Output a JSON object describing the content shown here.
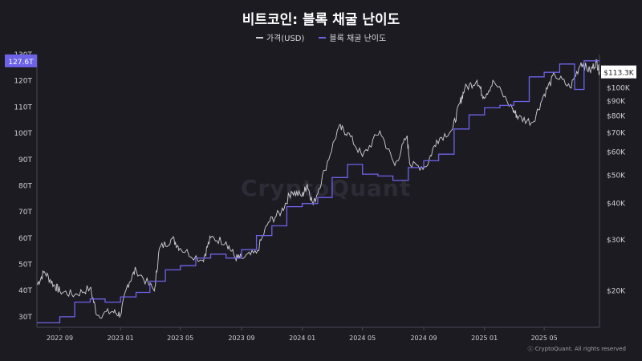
{
  "title": "비트코인: 블록 채굴 난이도",
  "legend": [
    {
      "label": "가격(USD)",
      "color": "#d0d0d6"
    },
    {
      "label": "블록 채굴 난이도",
      "color": "#6c63e8"
    }
  ],
  "watermark": "CryptoQuant",
  "credit": "ⓒ CryptoQuant. All rights reserved",
  "colors": {
    "background": "#1c1b22",
    "price": "#d0d0d6",
    "difficulty": "#6c63e8",
    "axis_text": "#cfcfd4"
  },
  "chart_data": {
    "type": "line",
    "title": "비트코인: 블록 채굴 난이도",
    "x_ticks": [
      "2022 09",
      "2023 01",
      "2023 05",
      "2023 09",
      "2024 01",
      "2024 05",
      "2024 09",
      "2025 01",
      "2025 05"
    ],
    "x_tick_dates": [
      "2022-09-01",
      "2023-01-01",
      "2023-05-01",
      "2023-09-01",
      "2024-01-01",
      "2024-05-01",
      "2024-09-01",
      "2025-01-01",
      "2025-05-01"
    ],
    "x_range": [
      "2022-07-17",
      "2025-08-20"
    ],
    "y_left": {
      "label": "블록 채굴 난이도",
      "unit": "T",
      "ticks": [
        30,
        40,
        50,
        60,
        70,
        80,
        90,
        100,
        110,
        120,
        130
      ],
      "tick_labels": [
        "30T",
        "40T",
        "50T",
        "60T",
        "70T",
        "80T",
        "90T",
        "100T",
        "110T",
        "120T",
        "130T"
      ],
      "range": [
        26,
        130
      ],
      "current_label": "127.6T"
    },
    "y_right": {
      "label": "가격(USD)",
      "scale": "log",
      "ticks": [
        20000,
        30000,
        40000,
        50000,
        60000,
        70000,
        80000,
        90000,
        100000
      ],
      "tick_labels": [
        "$20K",
        "$30K",
        "$40K",
        "$50K",
        "$60K",
        "$70K",
        "$80K",
        "$90K",
        "$100K"
      ],
      "range": [
        15000,
        130000
      ],
      "current_label": "$113.3K"
    },
    "grid": false,
    "legend_position": "top-center",
    "series": [
      {
        "name": "블록 채굴 난이도",
        "axis": "left",
        "step": true,
        "points": [
          [
            "2022-07-17",
            27.7
          ],
          [
            "2022-09-01",
            30.0
          ],
          [
            "2022-10-01",
            35.6
          ],
          [
            "2022-11-01",
            36.8
          ],
          [
            "2022-12-01",
            35.6
          ],
          [
            "2023-01-01",
            37.6
          ],
          [
            "2023-02-01",
            39.3
          ],
          [
            "2023-03-01",
            43.6
          ],
          [
            "2023-04-01",
            47.9
          ],
          [
            "2023-05-01",
            49.5
          ],
          [
            "2023-06-01",
            52.4
          ],
          [
            "2023-07-01",
            53.9
          ],
          [
            "2023-08-01",
            52.4
          ],
          [
            "2023-09-01",
            55.6
          ],
          [
            "2023-10-01",
            61.0
          ],
          [
            "2023-11-01",
            64.7
          ],
          [
            "2023-12-01",
            72.0
          ],
          [
            "2024-01-01",
            73.2
          ],
          [
            "2024-02-01",
            75.5
          ],
          [
            "2024-03-01",
            83.1
          ],
          [
            "2024-04-01",
            88.1
          ],
          [
            "2024-05-01",
            84.4
          ],
          [
            "2024-06-01",
            83.7
          ],
          [
            "2024-07-01",
            82.0
          ],
          [
            "2024-08-01",
            86.9
          ],
          [
            "2024-09-01",
            89.5
          ],
          [
            "2024-10-01",
            92.0
          ],
          [
            "2024-11-01",
            101.6
          ],
          [
            "2024-12-01",
            107.0
          ],
          [
            "2025-01-01",
            109.7
          ],
          [
            "2025-02-01",
            110.6
          ],
          [
            "2025-03-01",
            112.1
          ],
          [
            "2025-04-01",
            121.5
          ],
          [
            "2025-05-01",
            123.2
          ],
          [
            "2025-06-01",
            126.4
          ],
          [
            "2025-07-01",
            116.7
          ],
          [
            "2025-07-20",
            127.6
          ],
          [
            "2025-08-20",
            127.6
          ]
        ]
      },
      {
        "name": "가격(USD)",
        "axis": "right",
        "step": false,
        "points": [
          [
            "2022-07-17",
            21000
          ],
          [
            "2022-08-01",
            23300
          ],
          [
            "2022-08-20",
            21000
          ],
          [
            "2022-09-01",
            20000
          ],
          [
            "2022-10-01",
            19400
          ],
          [
            "2022-11-01",
            20500
          ],
          [
            "2022-11-15",
            16500
          ],
          [
            "2022-12-15",
            17000
          ],
          [
            "2023-01-01",
            16600
          ],
          [
            "2023-01-15",
            21000
          ],
          [
            "2023-02-01",
            23700
          ],
          [
            "2023-03-10",
            20000
          ],
          [
            "2023-03-20",
            28000
          ],
          [
            "2023-04-15",
            30300
          ],
          [
            "2023-05-01",
            28000
          ],
          [
            "2023-06-15",
            25500
          ],
          [
            "2023-07-01",
            30500
          ],
          [
            "2023-08-01",
            29500
          ],
          [
            "2023-08-20",
            26000
          ],
          [
            "2023-09-01",
            25900
          ],
          [
            "2023-10-01",
            27000
          ],
          [
            "2023-10-25",
            34500
          ],
          [
            "2023-11-20",
            37500
          ],
          [
            "2023-12-10",
            44000
          ],
          [
            "2024-01-01",
            42500
          ],
          [
            "2024-01-11",
            46500
          ],
          [
            "2024-01-23",
            39500
          ],
          [
            "2024-02-15",
            52000
          ],
          [
            "2024-03-14",
            73000
          ],
          [
            "2024-04-01",
            70000
          ],
          [
            "2024-05-01",
            58000
          ],
          [
            "2024-06-05",
            71000
          ],
          [
            "2024-07-05",
            54000
          ],
          [
            "2024-07-29",
            68000
          ],
          [
            "2024-08-05",
            54000
          ],
          [
            "2024-09-06",
            53500
          ],
          [
            "2024-09-27",
            66000
          ],
          [
            "2024-10-29",
            72000
          ],
          [
            "2024-11-12",
            88000
          ],
          [
            "2024-11-22",
            99000
          ],
          [
            "2024-12-17",
            106000
          ],
          [
            "2024-12-30",
            93000
          ],
          [
            "2025-01-20",
            105000
          ],
          [
            "2025-02-27",
            84000
          ],
          [
            "2025-03-10",
            79000
          ],
          [
            "2025-04-08",
            76000
          ],
          [
            "2025-05-01",
            95000
          ],
          [
            "2025-05-22",
            111000
          ],
          [
            "2025-06-22",
            100000
          ],
          [
            "2025-07-14",
            122000
          ],
          [
            "2025-08-01",
            114000
          ],
          [
            "2025-08-14",
            123000
          ],
          [
            "2025-08-20",
            113300
          ]
        ]
      }
    ]
  }
}
